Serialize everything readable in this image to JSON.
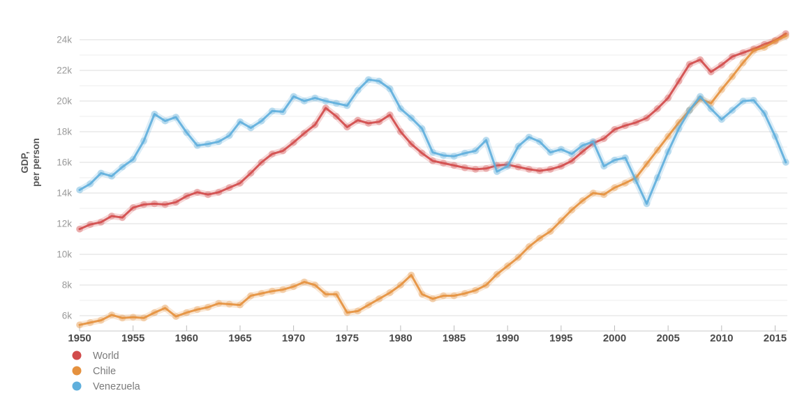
{
  "chart_data": {
    "type": "line",
    "title": "",
    "ylabel_lines": [
      "GDP,",
      "per person"
    ],
    "unit_suffix": "k",
    "grid": true,
    "legend_position": "bottom-left",
    "ylim_k": [
      5,
      24.5
    ],
    "y_gridlines_k": [
      5,
      6,
      7,
      8,
      9,
      10,
      11,
      12,
      13,
      14,
      15,
      16,
      17,
      18,
      19,
      20,
      21,
      22,
      23,
      24
    ],
    "y_tick_labels": [
      "6k",
      "8k",
      "10k",
      "12k",
      "14k",
      "16k",
      "18k",
      "20k",
      "22k",
      "24k"
    ],
    "x_tick_years": [
      1950,
      1955,
      1960,
      1965,
      1970,
      1975,
      1980,
      1985,
      1990,
      1995,
      2000,
      2005,
      2010,
      2015
    ],
    "years": [
      1950,
      1951,
      1952,
      1953,
      1954,
      1955,
      1956,
      1957,
      1958,
      1959,
      1960,
      1961,
      1962,
      1963,
      1964,
      1965,
      1966,
      1967,
      1968,
      1969,
      1970,
      1971,
      1972,
      1973,
      1974,
      1975,
      1976,
      1977,
      1978,
      1979,
      1980,
      1981,
      1982,
      1983,
      1984,
      1985,
      1986,
      1987,
      1988,
      1989,
      1990,
      1991,
      1992,
      1993,
      1994,
      1995,
      1996,
      1997,
      1998,
      1999,
      2000,
      2001,
      2002,
      2003,
      2004,
      2005,
      2006,
      2007,
      2008,
      2009,
      2010,
      2011,
      2012,
      2013,
      2014,
      2015,
      2016
    ],
    "series": [
      {
        "name": "World",
        "color": "#d14b4b",
        "values_k": [
          11.65,
          11.95,
          12.1,
          12.5,
          12.4,
          13.05,
          13.25,
          13.3,
          13.25,
          13.4,
          13.8,
          14.05,
          13.9,
          14.05,
          14.35,
          14.65,
          15.3,
          16.0,
          16.55,
          16.75,
          17.3,
          17.9,
          18.45,
          19.55,
          19.0,
          18.3,
          18.75,
          18.55,
          18.65,
          19.1,
          18.0,
          17.2,
          16.6,
          16.1,
          15.95,
          15.8,
          15.65,
          15.55,
          15.6,
          15.8,
          15.85,
          15.7,
          15.55,
          15.45,
          15.55,
          15.75,
          16.1,
          16.7,
          17.25,
          17.55,
          18.15,
          18.4,
          18.6,
          18.9,
          19.5,
          20.2,
          21.3,
          22.4,
          22.7,
          21.9,
          22.35,
          22.9,
          23.15,
          23.4,
          23.7,
          23.95,
          24.4
        ]
      },
      {
        "name": "Chile",
        "color": "#e5913e",
        "values_k": [
          5.4,
          5.55,
          5.7,
          6.05,
          5.85,
          5.9,
          5.85,
          6.2,
          6.5,
          5.95,
          6.2,
          6.4,
          6.55,
          6.8,
          6.75,
          6.7,
          7.3,
          7.45,
          7.6,
          7.7,
          7.9,
          8.2,
          8.0,
          7.4,
          7.4,
          6.2,
          6.3,
          6.7,
          7.1,
          7.5,
          8.0,
          8.65,
          7.4,
          7.1,
          7.3,
          7.3,
          7.45,
          7.65,
          8.0,
          8.7,
          9.25,
          9.8,
          10.5,
          11.05,
          11.5,
          12.2,
          12.9,
          13.5,
          14.0,
          13.9,
          14.35,
          14.65,
          15.0,
          15.9,
          16.8,
          17.7,
          18.6,
          19.4,
          20.15,
          19.85,
          20.75,
          21.6,
          22.5,
          23.3,
          23.5,
          23.9,
          24.25
        ]
      },
      {
        "name": "Venezuela",
        "color": "#5fafdc",
        "values_k": [
          14.2,
          14.6,
          15.3,
          15.1,
          15.7,
          16.2,
          17.4,
          19.15,
          18.7,
          18.95,
          17.95,
          17.1,
          17.2,
          17.35,
          17.75,
          18.65,
          18.25,
          18.7,
          19.35,
          19.3,
          20.3,
          20.0,
          20.2,
          20.0,
          19.85,
          19.7,
          20.7,
          21.4,
          21.3,
          20.8,
          19.5,
          18.9,
          18.2,
          16.65,
          16.45,
          16.4,
          16.6,
          16.75,
          17.45,
          15.4,
          15.75,
          17.05,
          17.65,
          17.35,
          16.65,
          16.85,
          16.55,
          17.1,
          17.35,
          15.75,
          16.15,
          16.3,
          14.8,
          13.3,
          15.0,
          16.7,
          18.2,
          19.4,
          20.3,
          19.5,
          18.8,
          19.4,
          20.0,
          20.05,
          19.2,
          17.7,
          16.0
        ]
      }
    ]
  },
  "legend": {
    "items": [
      {
        "label": "World"
      },
      {
        "label": "Chile"
      },
      {
        "label": "Venezuela"
      }
    ]
  },
  "colors": {
    "background": "#ffffff",
    "grid_minor": "#ededed",
    "grid_major": "#dcdcdc",
    "axis_line": "#c9c9c9",
    "tick_mark": "#bbbbbb",
    "y_tick_text": "#9a9a9a",
    "x_tick_text": "#4a4a4a",
    "axis_title_text": "#555555",
    "legend_text": "#7a7a7a"
  }
}
